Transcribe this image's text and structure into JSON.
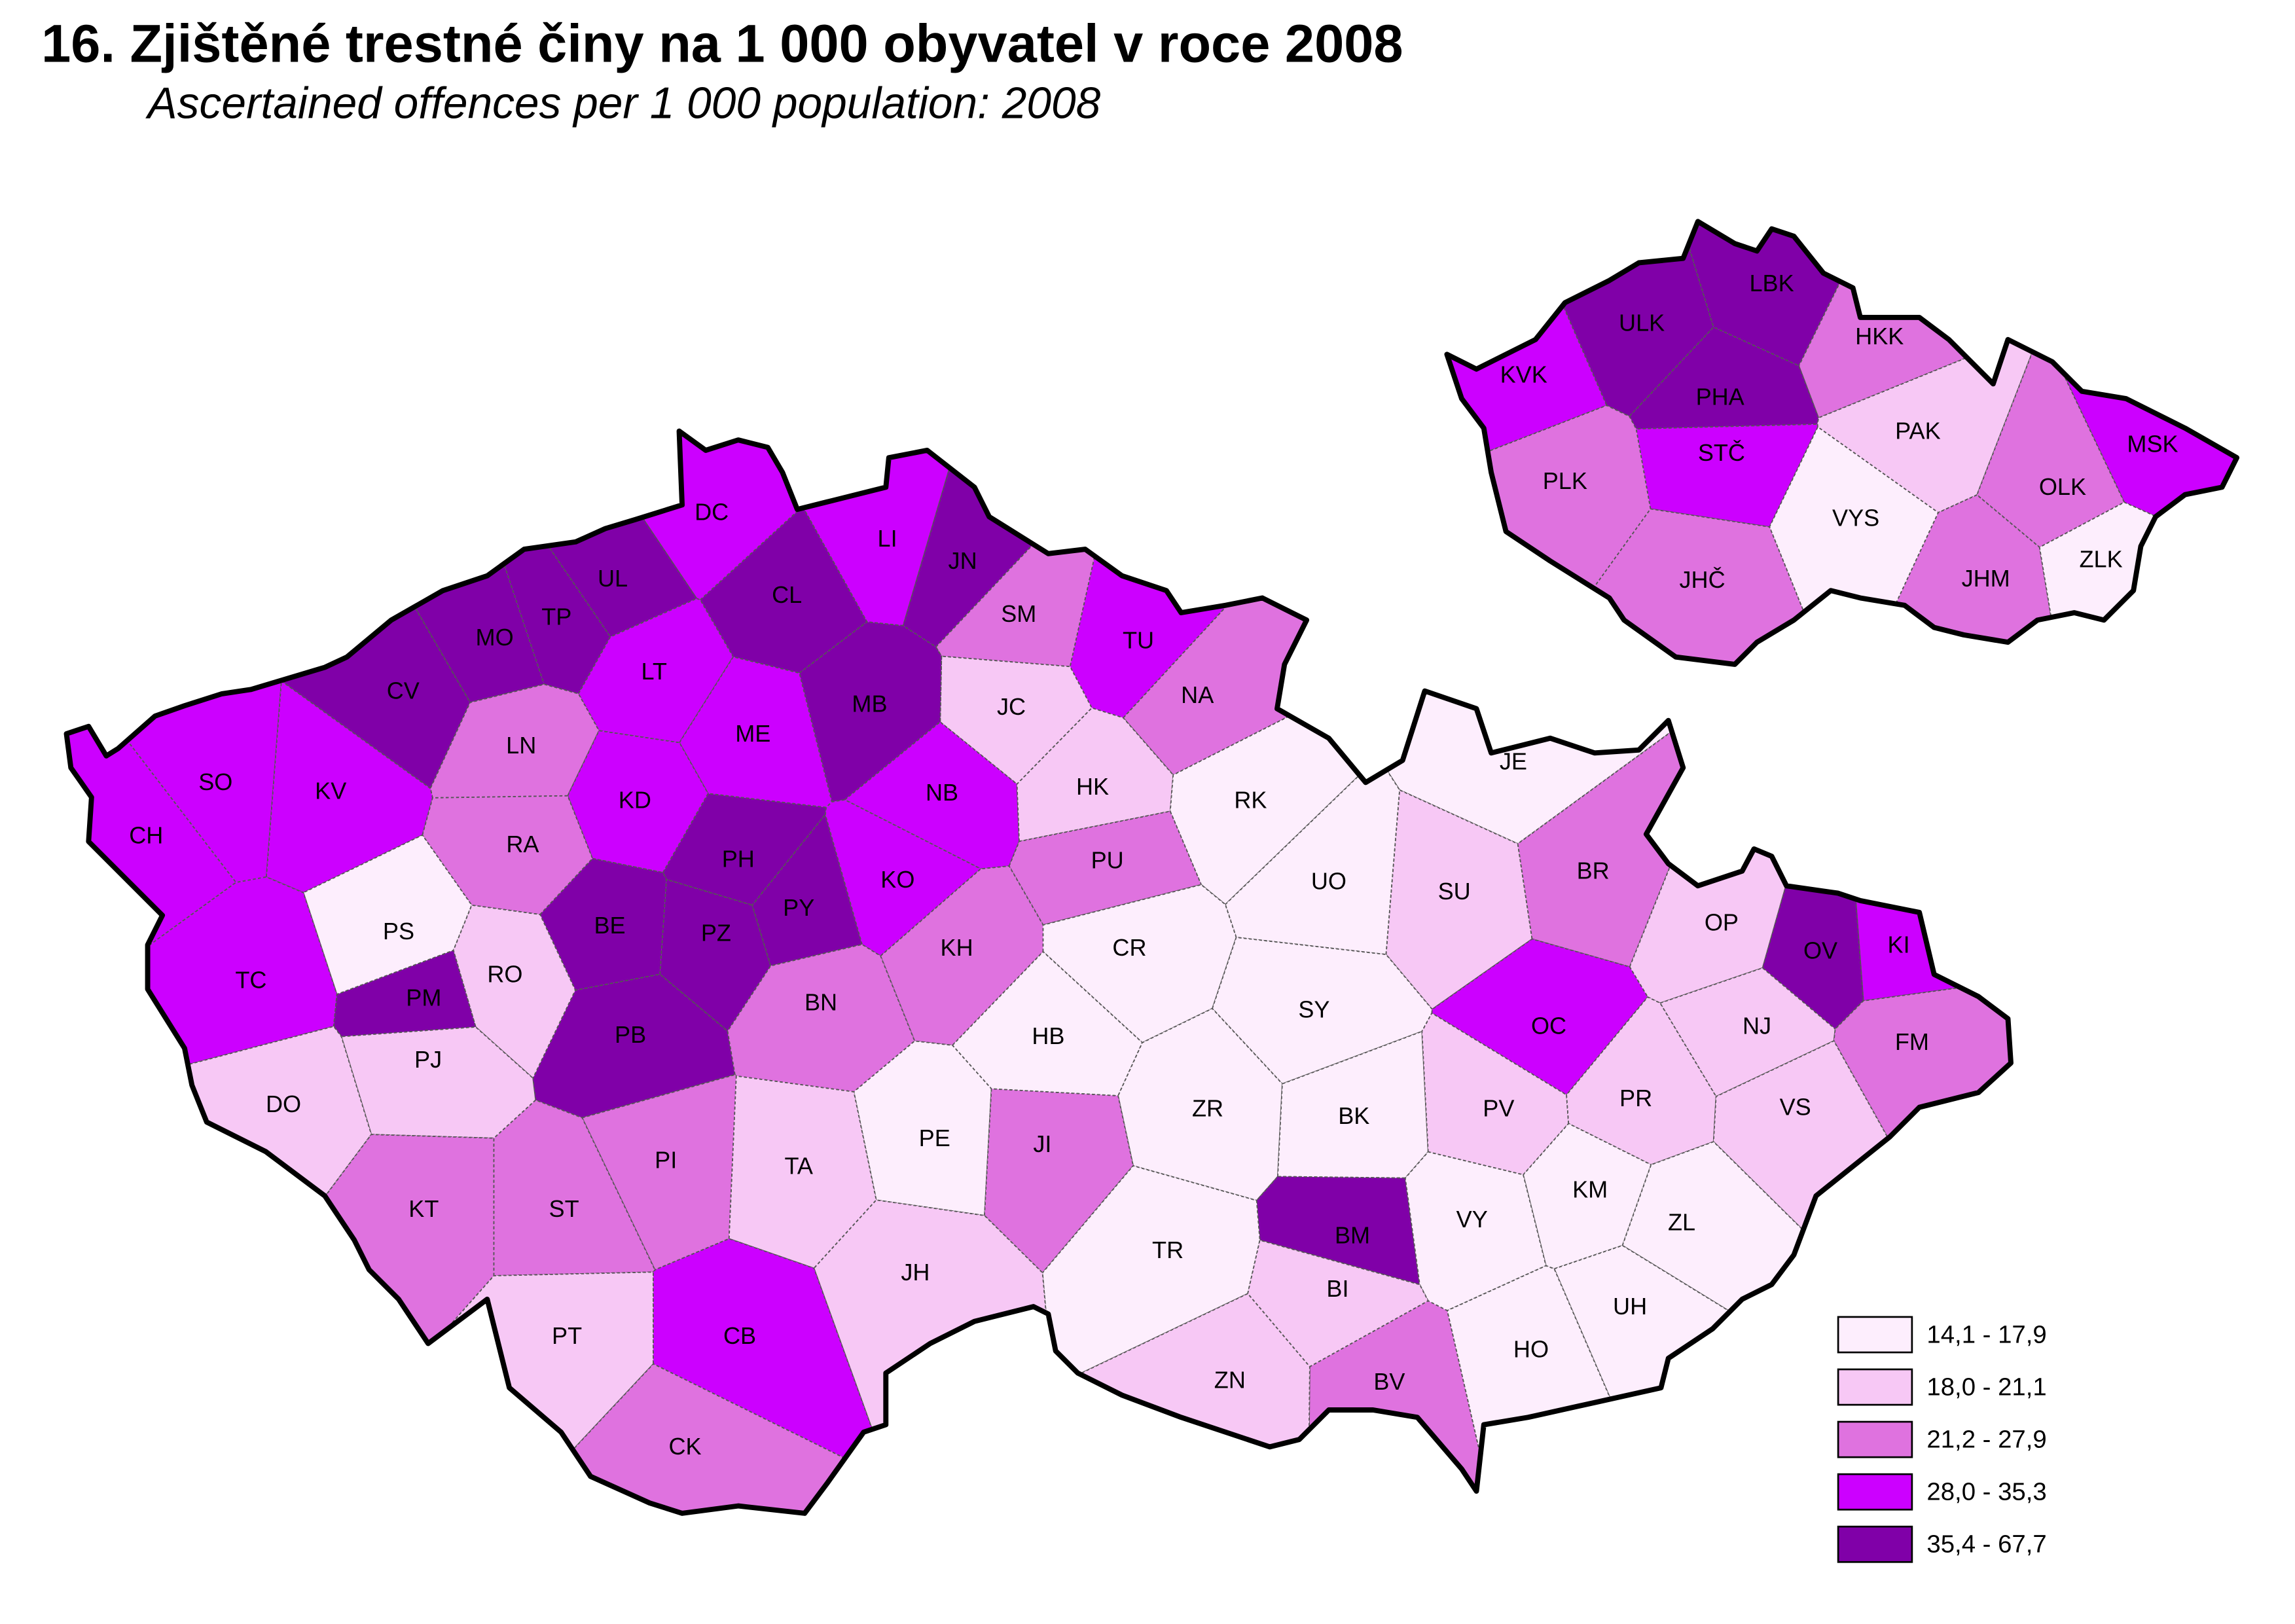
{
  "header": {
    "title": "16. Zjištěné trestné činy na 1 000 obyvatel v roce 2008",
    "subtitle": "Ascertained offences per 1 000 population: 2008"
  },
  "map": {
    "legend": [
      {
        "label": "14,1 - 17,9",
        "color": "#fdeefd"
      },
      {
        "label": "18,0 - 21,1",
        "color": "#f7c8f5"
      },
      {
        "label": "21,2 - 27,9",
        "color": "#df72df"
      },
      {
        "label": "28,0 - 35,3",
        "color": "#cc00ff"
      },
      {
        "label": "35,4 - 67,7",
        "color": "#8000a8"
      }
    ],
    "districts": [
      {
        "label": "DC",
        "class": 3
      },
      {
        "label": "LI",
        "class": 3
      },
      {
        "label": "JN",
        "class": 4
      },
      {
        "label": "CL",
        "class": 4
      },
      {
        "label": "UL",
        "class": 4
      },
      {
        "label": "TP",
        "class": 4
      },
      {
        "label": "MO",
        "class": 4
      },
      {
        "label": "CV",
        "class": 4
      },
      {
        "label": "LT",
        "class": 3
      },
      {
        "label": "SM",
        "class": 2
      },
      {
        "label": "TU",
        "class": 3
      },
      {
        "label": "NA",
        "class": 2
      },
      {
        "label": "JC",
        "class": 1
      },
      {
        "label": "MB",
        "class": 4
      },
      {
        "label": "ME",
        "class": 3
      },
      {
        "label": "LN",
        "class": 2
      },
      {
        "label": "SO",
        "class": 3
      },
      {
        "label": "KV",
        "class": 3
      },
      {
        "label": "CH",
        "class": 3
      },
      {
        "label": "KD",
        "class": 3
      },
      {
        "label": "NB",
        "class": 3
      },
      {
        "label": "HK",
        "class": 1
      },
      {
        "label": "RK",
        "class": 0
      },
      {
        "label": "JE",
        "class": 0
      },
      {
        "label": "RA",
        "class": 2
      },
      {
        "label": "PH",
        "class": 4
      },
      {
        "label": "PU",
        "class": 2
      },
      {
        "label": "UO",
        "class": 0
      },
      {
        "label": "SU",
        "class": 1
      },
      {
        "label": "BR",
        "class": 2
      },
      {
        "label": "PS",
        "class": 0
      },
      {
        "label": "BE",
        "class": 4
      },
      {
        "label": "PZ",
        "class": 4
      },
      {
        "label": "PY",
        "class": 4
      },
      {
        "label": "KO",
        "class": 3
      },
      {
        "label": "OP",
        "class": 1
      },
      {
        "label": "KI",
        "class": 3
      },
      {
        "label": "OV",
        "class": 4
      },
      {
        "label": "TC",
        "class": 3
      },
      {
        "label": "RO",
        "class": 1
      },
      {
        "label": "PM",
        "class": 4
      },
      {
        "label": "KH",
        "class": 2
      },
      {
        "label": "CR",
        "class": 0
      },
      {
        "label": "SY",
        "class": 0
      },
      {
        "label": "OC",
        "class": 3
      },
      {
        "label": "NJ",
        "class": 1
      },
      {
        "label": "FM",
        "class": 2
      },
      {
        "label": "PJ",
        "class": 1
      },
      {
        "label": "PB",
        "class": 4
      },
      {
        "label": "BN",
        "class": 2
      },
      {
        "label": "HB",
        "class": 0
      },
      {
        "label": "DO",
        "class": 1
      },
      {
        "label": "PE",
        "class": 0
      },
      {
        "label": "ZR",
        "class": 0
      },
      {
        "label": "BK",
        "class": 0
      },
      {
        "label": "PV",
        "class": 1
      },
      {
        "label": "PR",
        "class": 1
      },
      {
        "label": "VS",
        "class": 1
      },
      {
        "label": "PI",
        "class": 2
      },
      {
        "label": "TA",
        "class": 1
      },
      {
        "label": "JI",
        "class": 2
      },
      {
        "label": "KM",
        "class": 0
      },
      {
        "label": "KT",
        "class": 2
      },
      {
        "label": "ST",
        "class": 2
      },
      {
        "label": "BM",
        "class": 4
      },
      {
        "label": "VY",
        "class": 0
      },
      {
        "label": "ZL",
        "class": 0
      },
      {
        "label": "TR",
        "class": 0
      },
      {
        "label": "JH",
        "class": 1
      },
      {
        "label": "BI",
        "class": 1
      },
      {
        "label": "UH",
        "class": 0
      },
      {
        "label": "PT",
        "class": 1
      },
      {
        "label": "CB",
        "class": 3
      },
      {
        "label": "HO",
        "class": 0
      },
      {
        "label": "BV",
        "class": 2
      },
      {
        "label": "ZN",
        "class": 1
      },
      {
        "label": "CK",
        "class": 2
      }
    ],
    "regions": [
      {
        "label": "ULK",
        "class": 4
      },
      {
        "label": "LBK",
        "class": 4
      },
      {
        "label": "KVK",
        "class": 3
      },
      {
        "label": "HKK",
        "class": 2
      },
      {
        "label": "PHA",
        "class": 4
      },
      {
        "label": "STČ",
        "class": 3
      },
      {
        "label": "PAK",
        "class": 1
      },
      {
        "label": "PLK",
        "class": 2
      },
      {
        "label": "MSK",
        "class": 3
      },
      {
        "label": "OLK",
        "class": 2
      },
      {
        "label": "VYS",
        "class": 0
      },
      {
        "label": "JHČ",
        "class": 2
      },
      {
        "label": "JHM",
        "class": 2
      },
      {
        "label": "ZLK",
        "class": 0
      }
    ]
  }
}
